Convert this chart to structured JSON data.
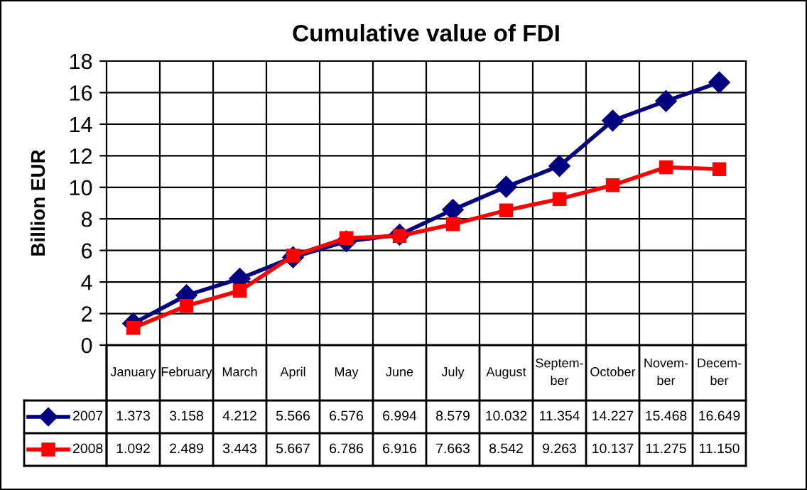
{
  "chart_data": {
    "type": "line",
    "title": "Cumulative value of FDI",
    "ylabel": "Billion EUR",
    "categories": [
      "January",
      "February",
      "March",
      "April",
      "May",
      "June",
      "July",
      "August",
      "Septem-\nber",
      "October",
      "Novem-\nber",
      "Decem-\nber"
    ],
    "series": [
      {
        "name": "2007",
        "color": "#000080",
        "marker": "diamond",
        "values": [
          1.373,
          3.158,
          4.212,
          5.566,
          6.576,
          6.994,
          8.579,
          10.032,
          11.354,
          14.227,
          15.468,
          16.649
        ],
        "value_labels": [
          "1.373",
          "3.158",
          "4.212",
          "5.566",
          "6.576",
          "6.994",
          "8.579",
          "10.032",
          "11.354",
          "14.227",
          "15.468",
          "16.649"
        ]
      },
      {
        "name": "2008",
        "color": "#ff0000",
        "marker": "square",
        "values": [
          1.092,
          2.489,
          3.443,
          5.667,
          6.786,
          6.916,
          7.663,
          8.542,
          9.263,
          10.137,
          11.275,
          11.15
        ],
        "value_labels": [
          "1.092",
          "2.489",
          "3.443",
          "5.667",
          "6.786",
          "6.916",
          "7.663",
          "8.542",
          "9.263",
          "10.137",
          "11.275",
          "11.150"
        ]
      }
    ],
    "ylim": [
      0,
      18
    ],
    "yticks": [
      0,
      2,
      4,
      6,
      8,
      10,
      12,
      14,
      16,
      18
    ],
    "grid": true,
    "legend": "bottom",
    "line_style": "solid"
  }
}
